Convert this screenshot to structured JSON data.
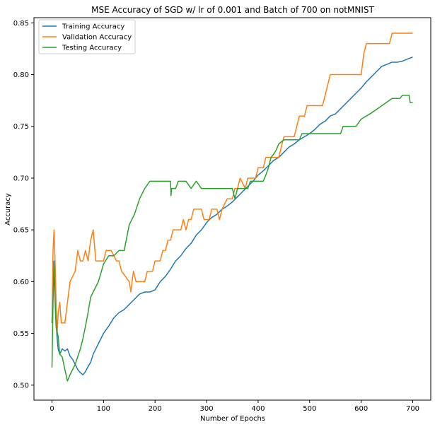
{
  "chart_data": {
    "type": "line",
    "title": "MSE Accuracy of SGD w/ lr of 0.001 and Batch of 700 on notMNIST",
    "xlabel": "Number of Epochs",
    "ylabel": "Accuracy",
    "xlim": [
      -35,
      735
    ],
    "ylim": [
      0.4855,
      0.855
    ],
    "xticks": [
      0,
      100,
      200,
      300,
      400,
      500,
      600,
      700
    ],
    "xtick_labels": [
      "0",
      "100",
      "200",
      "300",
      "400",
      "500",
      "600",
      "700"
    ],
    "yticks": [
      0.5,
      0.55,
      0.6,
      0.65,
      0.7,
      0.75,
      0.8,
      0.85
    ],
    "ytick_labels": [
      "0.50",
      "0.55",
      "0.60",
      "0.65",
      "0.70",
      "0.75",
      "0.80",
      "0.85"
    ],
    "grid": false,
    "legend_position": "top-left",
    "series": [
      {
        "name": "Training Accuracy",
        "color": "#1f77b4",
        "points": [
          [
            0,
            0.56
          ],
          [
            2,
            0.6
          ],
          [
            4,
            0.62
          ],
          [
            6,
            0.59
          ],
          [
            8,
            0.56
          ],
          [
            10,
            0.545
          ],
          [
            12,
            0.535
          ],
          [
            15,
            0.53
          ],
          [
            20,
            0.535
          ],
          [
            25,
            0.533
          ],
          [
            30,
            0.535
          ],
          [
            35,
            0.528
          ],
          [
            40,
            0.525
          ],
          [
            45,
            0.52
          ],
          [
            50,
            0.515
          ],
          [
            55,
            0.512
          ],
          [
            60,
            0.51
          ],
          [
            65,
            0.513
          ],
          [
            70,
            0.518
          ],
          [
            75,
            0.522
          ],
          [
            80,
            0.53
          ],
          [
            85,
            0.535
          ],
          [
            90,
            0.54
          ],
          [
            95,
            0.545
          ],
          [
            100,
            0.55
          ],
          [
            110,
            0.557
          ],
          [
            120,
            0.565
          ],
          [
            130,
            0.57
          ],
          [
            140,
            0.573
          ],
          [
            150,
            0.578
          ],
          [
            160,
            0.583
          ],
          [
            170,
            0.588
          ],
          [
            180,
            0.59
          ],
          [
            190,
            0.59
          ],
          [
            200,
            0.592
          ],
          [
            210,
            0.6
          ],
          [
            220,
            0.605
          ],
          [
            230,
            0.612
          ],
          [
            240,
            0.62
          ],
          [
            250,
            0.625
          ],
          [
            260,
            0.632
          ],
          [
            270,
            0.637
          ],
          [
            280,
            0.645
          ],
          [
            290,
            0.65
          ],
          [
            300,
            0.657
          ],
          [
            310,
            0.662
          ],
          [
            320,
            0.665
          ],
          [
            330,
            0.67
          ],
          [
            340,
            0.673
          ],
          [
            350,
            0.677
          ],
          [
            360,
            0.682
          ],
          [
            370,
            0.687
          ],
          [
            380,
            0.692
          ],
          [
            390,
            0.697
          ],
          [
            400,
            0.703
          ],
          [
            410,
            0.707
          ],
          [
            420,
            0.712
          ],
          [
            430,
            0.717
          ],
          [
            440,
            0.72
          ],
          [
            450,
            0.725
          ],
          [
            460,
            0.73
          ],
          [
            470,
            0.733
          ],
          [
            480,
            0.737
          ],
          [
            490,
            0.74
          ],
          [
            500,
            0.743
          ],
          [
            510,
            0.747
          ],
          [
            520,
            0.752
          ],
          [
            530,
            0.755
          ],
          [
            540,
            0.76
          ],
          [
            550,
            0.762
          ],
          [
            560,
            0.767
          ],
          [
            570,
            0.772
          ],
          [
            580,
            0.777
          ],
          [
            590,
            0.782
          ],
          [
            600,
            0.787
          ],
          [
            610,
            0.793
          ],
          [
            620,
            0.798
          ],
          [
            630,
            0.803
          ],
          [
            640,
            0.808
          ],
          [
            650,
            0.81
          ],
          [
            660,
            0.812
          ],
          [
            670,
            0.812
          ],
          [
            680,
            0.813
          ],
          [
            690,
            0.815
          ],
          [
            700,
            0.817
          ]
        ]
      },
      {
        "name": "Validation Accuracy",
        "color": "#ff7f0e",
        "points": [
          [
            0,
            0.56
          ],
          [
            2,
            0.63
          ],
          [
            4,
            0.65
          ],
          [
            6,
            0.62
          ],
          [
            8,
            0.58
          ],
          [
            10,
            0.55
          ],
          [
            12,
            0.57
          ],
          [
            15,
            0.58
          ],
          [
            18,
            0.56
          ],
          [
            25,
            0.56
          ],
          [
            30,
            0.58
          ],
          [
            35,
            0.6
          ],
          [
            45,
            0.61
          ],
          [
            50,
            0.63
          ],
          [
            55,
            0.62
          ],
          [
            60,
            0.62
          ],
          [
            65,
            0.63
          ],
          [
            70,
            0.62
          ],
          [
            75,
            0.64
          ],
          [
            80,
            0.65
          ],
          [
            85,
            0.62
          ],
          [
            95,
            0.62
          ],
          [
            100,
            0.62
          ],
          [
            105,
            0.63
          ],
          [
            115,
            0.63
          ],
          [
            125,
            0.62
          ],
          [
            130,
            0.62
          ],
          [
            135,
            0.61
          ],
          [
            150,
            0.6
          ],
          [
            153,
            0.59
          ],
          [
            158,
            0.61
          ],
          [
            163,
            0.6
          ],
          [
            180,
            0.6
          ],
          [
            185,
            0.61
          ],
          [
            195,
            0.61
          ],
          [
            200,
            0.62
          ],
          [
            210,
            0.62
          ],
          [
            215,
            0.63
          ],
          [
            220,
            0.63
          ],
          [
            225,
            0.64
          ],
          [
            230,
            0.64
          ],
          [
            235,
            0.65
          ],
          [
            250,
            0.65
          ],
          [
            255,
            0.66
          ],
          [
            260,
            0.65
          ],
          [
            265,
            0.66
          ],
          [
            270,
            0.66
          ],
          [
            275,
            0.67
          ],
          [
            290,
            0.67
          ],
          [
            295,
            0.66
          ],
          [
            305,
            0.66
          ],
          [
            310,
            0.67
          ],
          [
            320,
            0.67
          ],
          [
            325,
            0.66
          ],
          [
            330,
            0.67
          ],
          [
            340,
            0.68
          ],
          [
            350,
            0.68
          ],
          [
            355,
            0.69
          ],
          [
            360,
            0.69
          ],
          [
            365,
            0.7
          ],
          [
            375,
            0.69
          ],
          [
            380,
            0.7
          ],
          [
            395,
            0.7
          ],
          [
            400,
            0.71
          ],
          [
            410,
            0.71
          ],
          [
            415,
            0.72
          ],
          [
            440,
            0.72
          ],
          [
            445,
            0.73
          ],
          [
            450,
            0.74
          ],
          [
            470,
            0.74
          ],
          [
            475,
            0.75
          ],
          [
            480,
            0.76
          ],
          [
            490,
            0.76
          ],
          [
            495,
            0.77
          ],
          [
            525,
            0.77
          ],
          [
            530,
            0.78
          ],
          [
            535,
            0.79
          ],
          [
            540,
            0.8
          ],
          [
            600,
            0.8
          ],
          [
            605,
            0.82
          ],
          [
            610,
            0.83
          ],
          [
            655,
            0.83
          ],
          [
            660,
            0.84
          ],
          [
            700,
            0.84
          ]
        ]
      },
      {
        "name": "Testing Accuracy",
        "color": "#2ca02c",
        "points": [
          [
            0,
            0.517
          ],
          [
            2,
            0.58
          ],
          [
            4,
            0.614
          ],
          [
            6,
            0.58
          ],
          [
            8,
            0.556
          ],
          [
            12,
            0.547
          ],
          [
            15,
            0.53
          ],
          [
            20,
            0.527
          ],
          [
            25,
            0.515
          ],
          [
            30,
            0.504
          ],
          [
            35,
            0.51
          ],
          [
            45,
            0.52
          ],
          [
            55,
            0.535
          ],
          [
            60,
            0.545
          ],
          [
            65,
            0.557
          ],
          [
            70,
            0.57
          ],
          [
            75,
            0.585
          ],
          [
            80,
            0.59
          ],
          [
            90,
            0.6
          ],
          [
            100,
            0.617
          ],
          [
            110,
            0.625
          ],
          [
            120,
            0.625
          ],
          [
            130,
            0.63
          ],
          [
            140,
            0.63
          ],
          [
            150,
            0.655
          ],
          [
            160,
            0.665
          ],
          [
            170,
            0.68
          ],
          [
            180,
            0.69
          ],
          [
            190,
            0.697
          ],
          [
            230,
            0.697
          ],
          [
            231,
            0.683
          ],
          [
            232,
            0.69
          ],
          [
            240,
            0.69
          ],
          [
            245,
            0.697
          ],
          [
            260,
            0.697
          ],
          [
            270,
            0.69
          ],
          [
            280,
            0.697
          ],
          [
            290,
            0.69
          ],
          [
            350,
            0.69
          ],
          [
            355,
            0.68
          ],
          [
            360,
            0.69
          ],
          [
            380,
            0.69
          ],
          [
            385,
            0.697
          ],
          [
            410,
            0.697
          ],
          [
            415,
            0.703
          ],
          [
            420,
            0.71
          ],
          [
            425,
            0.72
          ],
          [
            430,
            0.723
          ],
          [
            435,
            0.727
          ],
          [
            440,
            0.733
          ],
          [
            450,
            0.737
          ],
          [
            480,
            0.737
          ],
          [
            485,
            0.743
          ],
          [
            560,
            0.743
          ],
          [
            565,
            0.75
          ],
          [
            590,
            0.75
          ],
          [
            600,
            0.757
          ],
          [
            620,
            0.763
          ],
          [
            640,
            0.77
          ],
          [
            660,
            0.777
          ],
          [
            675,
            0.777
          ],
          [
            680,
            0.78
          ],
          [
            693,
            0.78
          ],
          [
            695,
            0.773
          ],
          [
            700,
            0.773
          ]
        ]
      }
    ]
  }
}
